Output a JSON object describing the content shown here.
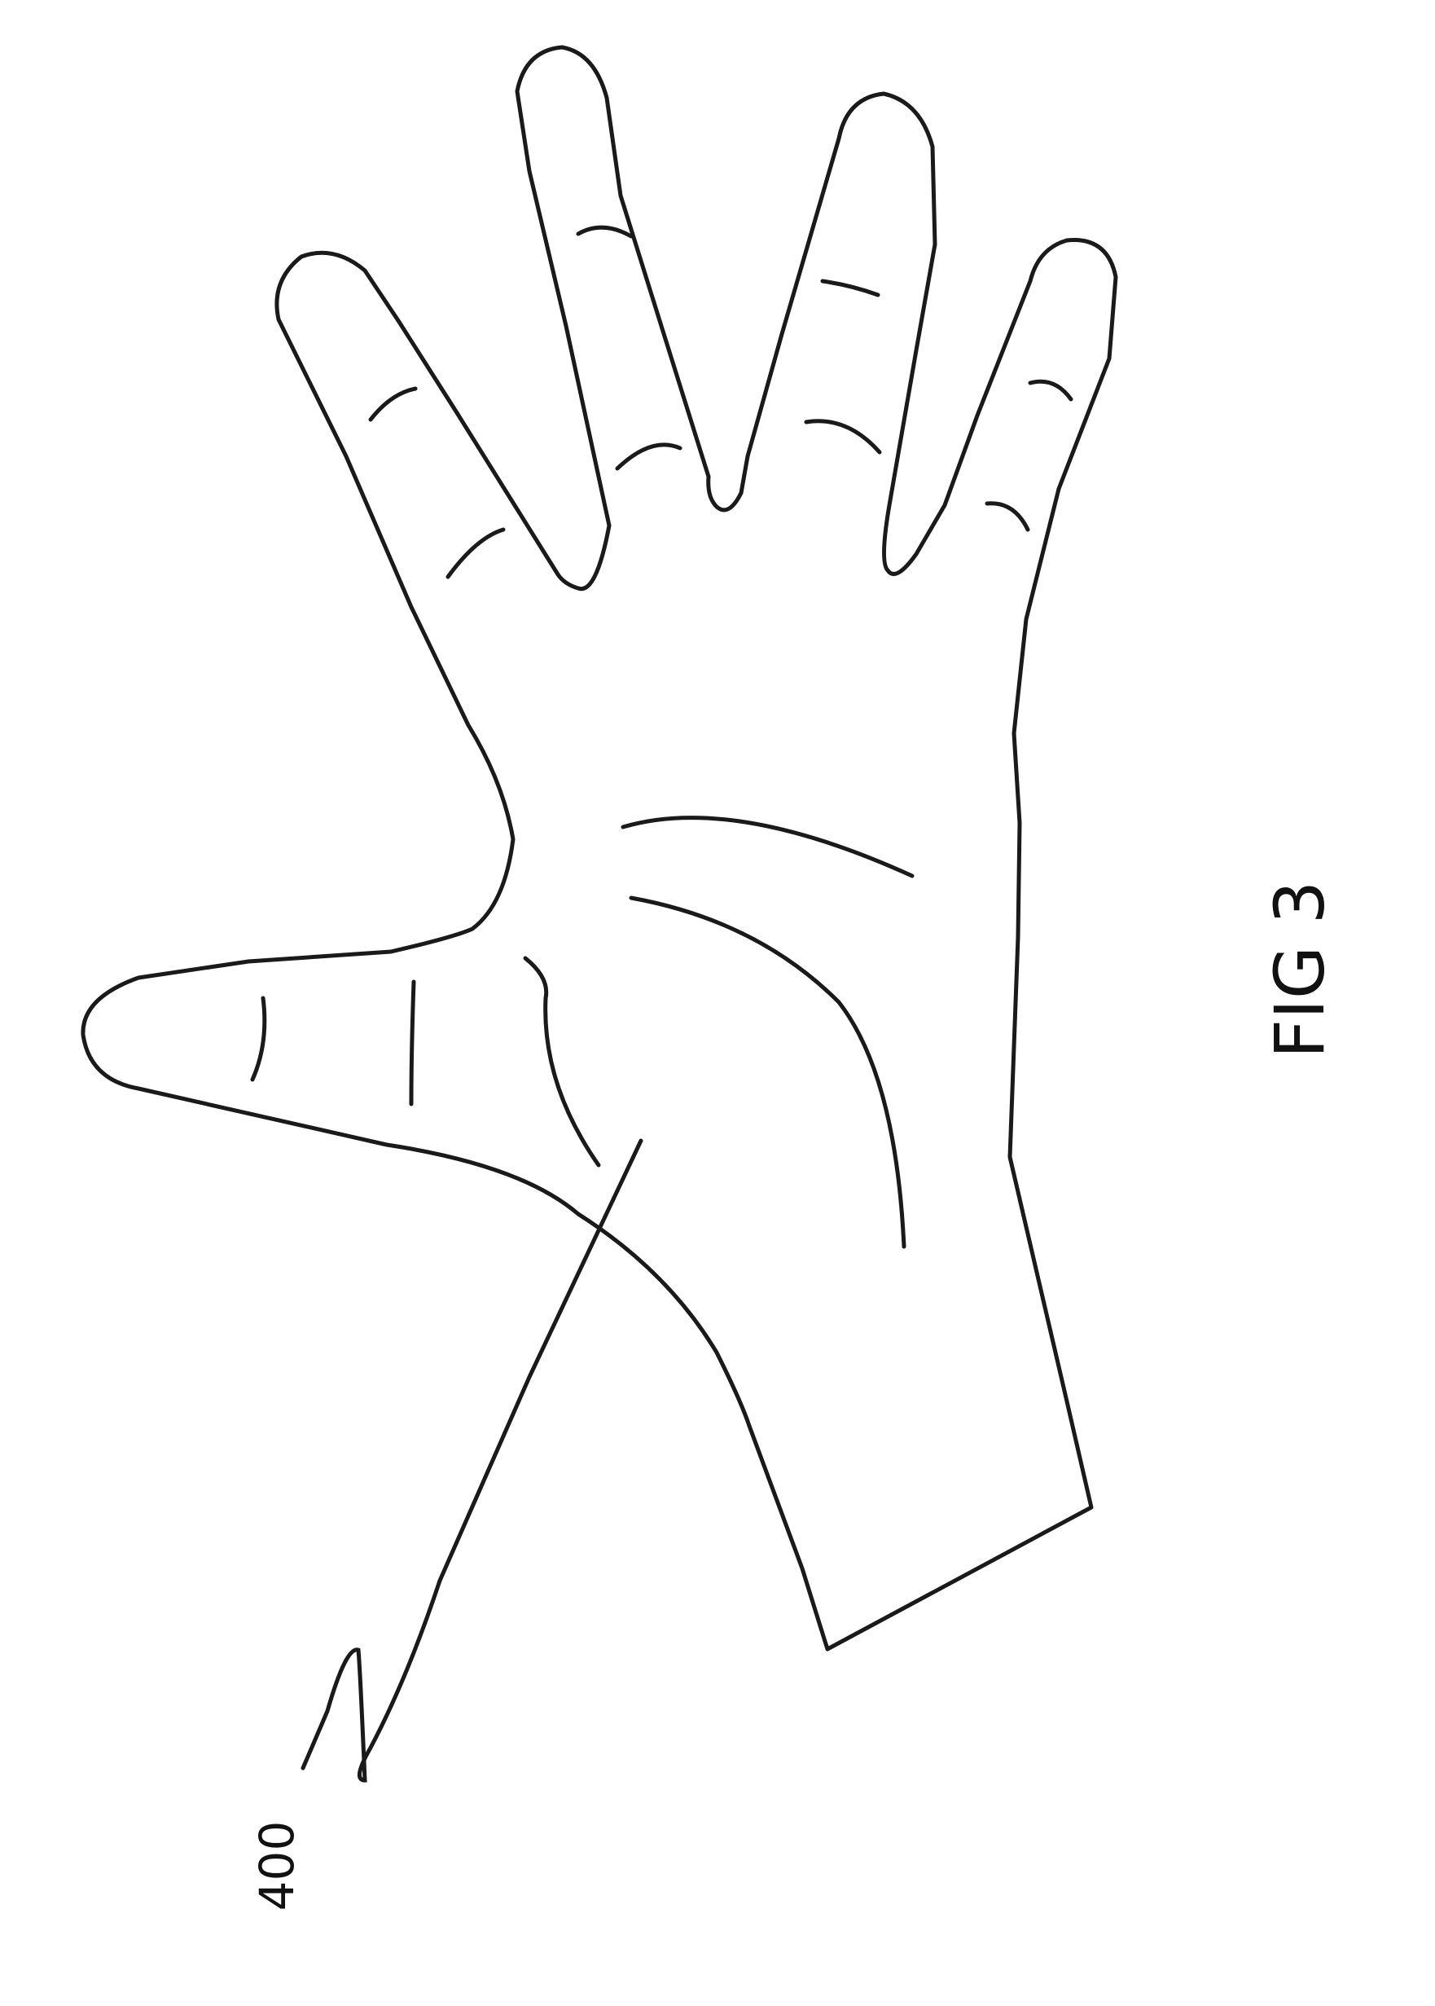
{
  "figure": {
    "caption": "FIG 3",
    "reference_numeral": "400"
  }
}
